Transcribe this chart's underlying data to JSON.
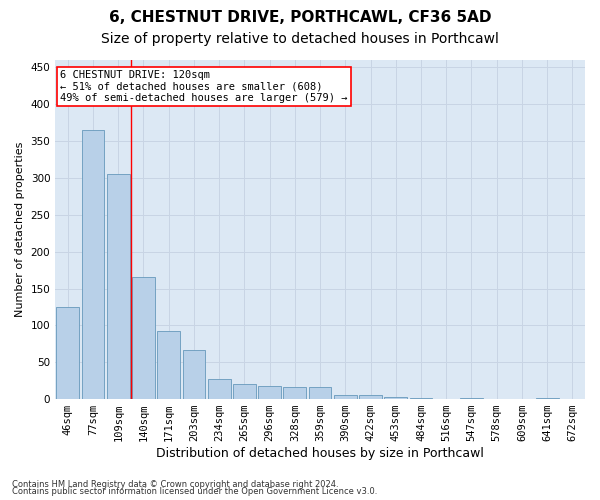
{
  "title": "6, CHESTNUT DRIVE, PORTHCAWL, CF36 5AD",
  "subtitle": "Size of property relative to detached houses in Porthcawl",
  "xlabel": "Distribution of detached houses by size in Porthcawl",
  "ylabel": "Number of detached properties",
  "footnote1": "Contains HM Land Registry data © Crown copyright and database right 2024.",
  "footnote2": "Contains public sector information licensed under the Open Government Licence v3.0.",
  "bar_labels": [
    "46sqm",
    "77sqm",
    "109sqm",
    "140sqm",
    "171sqm",
    "203sqm",
    "234sqm",
    "265sqm",
    "296sqm",
    "328sqm",
    "359sqm",
    "390sqm",
    "422sqm",
    "453sqm",
    "484sqm",
    "516sqm",
    "547sqm",
    "578sqm",
    "609sqm",
    "641sqm",
    "672sqm"
  ],
  "bar_values": [
    125,
    365,
    305,
    165,
    92,
    67,
    27,
    20,
    18,
    17,
    17,
    5,
    5,
    3,
    1,
    0,
    1,
    0,
    0,
    1,
    0
  ],
  "bar_color": "#b8d0e8",
  "bar_edge_color": "#6699bb",
  "grid_color": "#c8d4e4",
  "background_color": "#dce8f4",
  "red_line_x": 2.5,
  "annotation_line1": "6 CHESTNUT DRIVE: 120sqm",
  "annotation_line2": "← 51% of detached houses are smaller (608)",
  "annotation_line3": "49% of semi-detached houses are larger (579) →",
  "ylim": [
    0,
    460
  ],
  "yticks": [
    0,
    50,
    100,
    150,
    200,
    250,
    300,
    350,
    400,
    450
  ],
  "title_fontsize": 11,
  "subtitle_fontsize": 10,
  "xlabel_fontsize": 9,
  "ylabel_fontsize": 8,
  "tick_fontsize": 7.5,
  "annot_fontsize": 7.5,
  "footnote_fontsize": 6
}
